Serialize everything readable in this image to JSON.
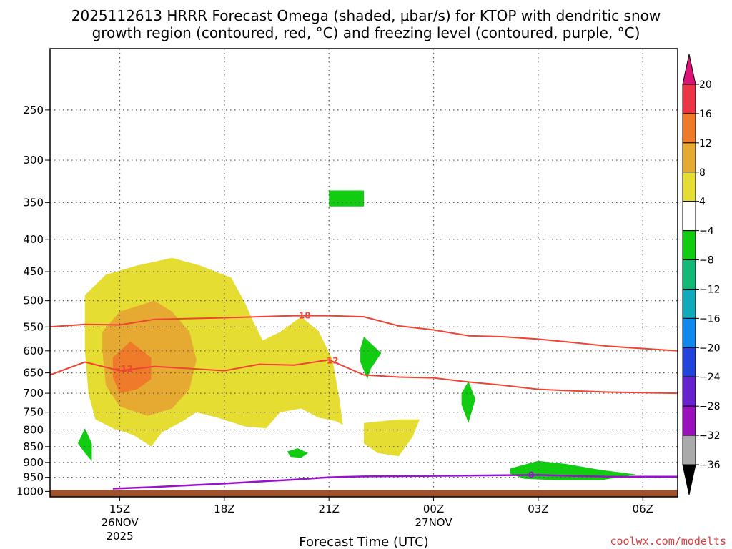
{
  "chart_data": {
    "type": "heatmap",
    "title_line1": "2025112613 HRRR Forecast Omega (shaded, μbar/s) for KTOP with dendritic snow",
    "title_line2": "growth region (contoured, red, °C) and freezing level (contoured, purple, °C)",
    "xlabel": "Forecast Time (UTC)",
    "credit": "coolwx.com/modelts",
    "x_ticks": [
      {
        "hour": 15,
        "label": "15Z",
        "sub1": "26NOV",
        "sub2": "2025"
      },
      {
        "hour": 18,
        "label": "18Z",
        "sub1": "",
        "sub2": ""
      },
      {
        "hour": 21,
        "label": "21Z",
        "sub1": "",
        "sub2": ""
      },
      {
        "hour": 24,
        "label": "00Z",
        "sub1": "27NOV",
        "sub2": ""
      },
      {
        "hour": 27,
        "label": "03Z",
        "sub1": "",
        "sub2": ""
      },
      {
        "hour": 30,
        "label": "06Z",
        "sub1": "",
        "sub2": ""
      }
    ],
    "x_range_hours": [
      13,
      31
    ],
    "y_ticks": [
      250,
      300,
      350,
      400,
      450,
      500,
      550,
      600,
      650,
      700,
      750,
      800,
      850,
      900,
      950,
      1000
    ],
    "y_range_hpa": [
      200,
      1020
    ],
    "colorbar": {
      "labels": [
        "20",
        "16",
        "12",
        "8",
        "4",
        "−4",
        "−8",
        "−12",
        "−16",
        "−20",
        "−24",
        "−28",
        "−32",
        "−36"
      ],
      "colors": [
        "#ee3344",
        "#ee7a2a",
        "#e6aa33",
        "#e6dd33",
        "#ffffff",
        "#11cc11",
        "#11bb77",
        "#11aabb",
        "#1188ee",
        "#2244dd",
        "#6622cc",
        "#9911bb",
        "#aaaaaa"
      ],
      "top_color": "#dd1177",
      "bottom_color": "#000000"
    },
    "contour_minus18": {
      "label": "−18",
      "color": "#ee4433",
      "points": [
        [
          13,
          550
        ],
        [
          14,
          545
        ],
        [
          15,
          546
        ],
        [
          16,
          535
        ],
        [
          18,
          532
        ],
        [
          20,
          528
        ],
        [
          21,
          528
        ],
        [
          22,
          530
        ],
        [
          23,
          548
        ],
        [
          24,
          556
        ],
        [
          25,
          568
        ],
        [
          26,
          570
        ],
        [
          27,
          575
        ],
        [
          28,
          582
        ],
        [
          29,
          590
        ],
        [
          31,
          600
        ]
      ]
    },
    "contour_minus12": {
      "label": "−12",
      "color": "#ee4433",
      "points": [
        [
          13,
          655
        ],
        [
          14,
          625
        ],
        [
          15,
          645
        ],
        [
          16,
          635
        ],
        [
          18,
          645
        ],
        [
          19,
          630
        ],
        [
          20,
          632
        ],
        [
          21,
          620
        ],
        [
          22,
          655
        ],
        [
          23,
          660
        ],
        [
          24,
          662
        ],
        [
          25,
          672
        ],
        [
          26,
          680
        ],
        [
          27,
          690
        ],
        [
          28,
          694
        ],
        [
          29,
          697
        ],
        [
          31,
          700
        ]
      ]
    },
    "contour_0": {
      "label": "0",
      "color": "#9911cc",
      "points": [
        [
          14.8,
          990
        ],
        [
          16,
          984
        ],
        [
          18,
          972
        ],
        [
          20,
          958
        ],
        [
          21,
          950
        ],
        [
          22,
          947
        ],
        [
          24,
          945
        ],
        [
          26,
          943
        ],
        [
          27,
          942
        ],
        [
          28,
          945
        ],
        [
          29,
          948
        ],
        [
          31,
          948
        ]
      ]
    },
    "omega_regions": [
      {
        "name": "upward-4-8-main",
        "color": "#e6dd33",
        "points": [
          [
            14.0,
            490
          ],
          [
            14.6,
            455
          ],
          [
            15.5,
            440
          ],
          [
            16.5,
            428
          ],
          [
            17.3,
            440
          ],
          [
            18.2,
            460
          ],
          [
            18.6,
            505
          ],
          [
            18.8,
            535
          ],
          [
            19.1,
            578
          ],
          [
            19.6,
            560
          ],
          [
            20.2,
            530
          ],
          [
            20.7,
            558
          ],
          [
            21.1,
            620
          ],
          [
            21.3,
            715
          ],
          [
            21.4,
            785
          ],
          [
            21.2,
            775
          ],
          [
            20.7,
            765
          ],
          [
            20.2,
            740
          ],
          [
            19.6,
            750
          ],
          [
            19.2,
            795
          ],
          [
            18.6,
            790
          ],
          [
            17.8,
            765
          ],
          [
            17.2,
            750
          ],
          [
            16.8,
            775
          ],
          [
            16.2,
            808
          ],
          [
            15.9,
            850
          ],
          [
            15.4,
            815
          ],
          [
            14.8,
            795
          ],
          [
            14.3,
            770
          ],
          [
            14.1,
            700
          ],
          [
            14.0,
            600
          ]
        ]
      },
      {
        "name": "upward-4-8-mid",
        "color": "#e6dd33",
        "points": [
          [
            22.0,
            780
          ],
          [
            23.0,
            770
          ],
          [
            23.6,
            770
          ],
          [
            23.4,
            820
          ],
          [
            23.0,
            880
          ],
          [
            22.4,
            870
          ],
          [
            22.0,
            840
          ]
        ]
      },
      {
        "name": "upward-8-12",
        "color": "#e6aa33",
        "points": [
          [
            14.5,
            560
          ],
          [
            15.0,
            520
          ],
          [
            16.0,
            500
          ],
          [
            16.5,
            520
          ],
          [
            17.0,
            560
          ],
          [
            17.2,
            620
          ],
          [
            17.0,
            690
          ],
          [
            16.5,
            740
          ],
          [
            15.8,
            760
          ],
          [
            15.0,
            735
          ],
          [
            14.6,
            680
          ],
          [
            14.5,
            600
          ]
        ]
      },
      {
        "name": "upward-12-16",
        "color": "#ee7a2a",
        "points": [
          [
            14.8,
            615
          ],
          [
            15.3,
            580
          ],
          [
            15.9,
            615
          ],
          [
            15.9,
            665
          ],
          [
            15.5,
            690
          ],
          [
            15.0,
            700
          ],
          [
            14.8,
            660
          ]
        ]
      },
      {
        "name": "downward-a",
        "color": "#11cc11",
        "points": [
          [
            14.0,
            795
          ],
          [
            14.2,
            840
          ],
          [
            14.2,
            895
          ],
          [
            14.0,
            870
          ],
          [
            13.8,
            840
          ]
        ]
      },
      {
        "name": "downward-b",
        "color": "#11cc11",
        "points": [
          [
            19.8,
            865
          ],
          [
            20.1,
            855
          ],
          [
            20.4,
            870
          ],
          [
            20.2,
            885
          ],
          [
            19.9,
            882
          ]
        ]
      },
      {
        "name": "downward-c",
        "color": "#11cc11",
        "points": [
          [
            22.0,
            570
          ],
          [
            22.5,
            605
          ],
          [
            22.2,
            640
          ],
          [
            22.1,
            665
          ],
          [
            21.9,
            625
          ],
          [
            21.9,
            595
          ]
        ]
      },
      {
        "name": "downward-d",
        "color": "#11cc11",
        "points": [
          [
            25.0,
            670
          ],
          [
            25.2,
            715
          ],
          [
            25.0,
            780
          ],
          [
            24.8,
            730
          ],
          [
            24.8,
            700
          ]
        ]
      },
      {
        "name": "downward-e",
        "color": "#11cc11",
        "points": [
          [
            21.0,
            335
          ],
          [
            22.0,
            335
          ],
          [
            22.0,
            355
          ],
          [
            21.0,
            355
          ]
        ]
      },
      {
        "name": "downward-f",
        "color": "#11cc11",
        "points": [
          [
            26.2,
            920
          ],
          [
            27.0,
            895
          ],
          [
            27.8,
            905
          ],
          [
            28.8,
            925
          ],
          [
            29.8,
            940
          ],
          [
            28.8,
            960
          ],
          [
            27.5,
            960
          ],
          [
            26.6,
            955
          ],
          [
            26.2,
            938
          ]
        ]
      }
    ],
    "ground_color": "#a0522d"
  }
}
